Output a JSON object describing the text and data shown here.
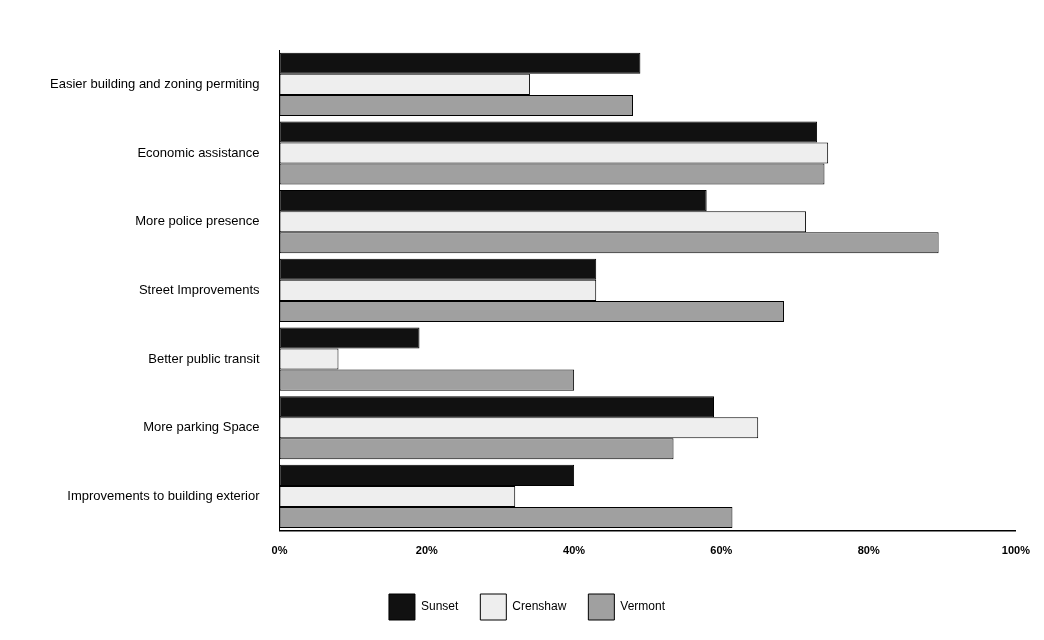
{
  "chart_data": {
    "type": "bar",
    "orientation": "horizontal",
    "categories": [
      "Easier building and zoning permiting",
      "Economic assistance",
      "More police presence",
      "Street Improvements",
      "Better public transit",
      "More parking Space",
      "Improvements to building exterior"
    ],
    "series": [
      {
        "name": "Sunset",
        "color": "#111111",
        "values": [
          49,
          73,
          58,
          43,
          19,
          59,
          40
        ]
      },
      {
        "name": "Crenshaw",
        "color": "#eeeeee",
        "values": [
          34,
          74.5,
          71.5,
          43,
          8,
          65,
          32
        ]
      },
      {
        "name": "Vermont",
        "color": "#a0a0a0",
        "values": [
          48,
          74,
          89.5,
          68.5,
          40,
          53.5,
          61.5
        ]
      }
    ],
    "xlim": [
      0,
      100
    ],
    "xticks": [
      {
        "value": 0,
        "label": "0%"
      },
      {
        "value": 20,
        "label": "20%"
      },
      {
        "value": 40,
        "label": "40%"
      },
      {
        "value": 60,
        "label": "60%"
      },
      {
        "value": 80,
        "label": "80%"
      },
      {
        "value": 100,
        "label": "100%"
      }
    ],
    "grid": false,
    "legend": "bottom"
  }
}
